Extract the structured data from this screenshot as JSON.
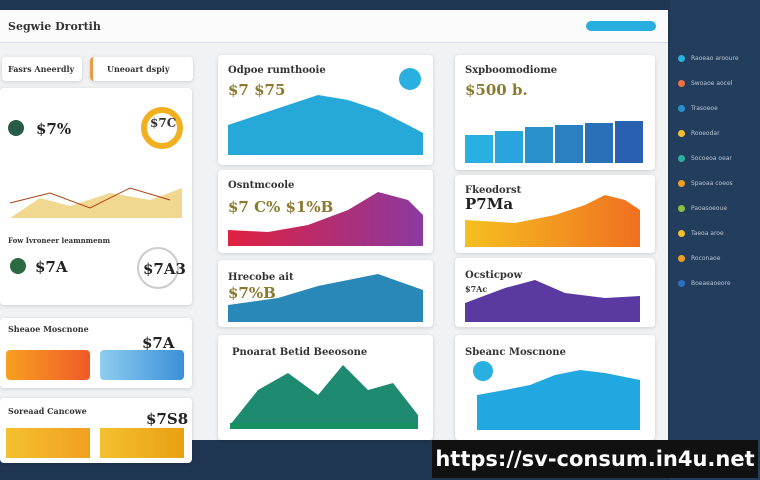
{
  "header": {
    "title": "Segwie Drortih"
  },
  "left_panel": {
    "tabs": [
      "Fasrs Aneerdly",
      "Uneoart dspiy"
    ],
    "stat_a": "$7%",
    "stat_b": "$7C",
    "caption": "Fow Ivroneer leamnmenm",
    "stat_c": "$7A",
    "stat_d": "$7A3"
  },
  "small_cards": [
    {
      "title": "Sheaoe Moscnone",
      "value": "$7A"
    },
    {
      "title": "Soreaad Cancowe",
      "value": "$7S8"
    }
  ],
  "cards": [
    {
      "title": "Odpoe rumthooie",
      "value": "$7 $75"
    },
    {
      "title": "Osntmcoole",
      "value": "$7 C% $1%B"
    },
    {
      "title": "Hrecobe ait",
      "value": "$7%B"
    },
    {
      "title": "Pnoarat Betid Beeosone"
    },
    {
      "title": "Sxpboomodiome",
      "value": "$500 b."
    },
    {
      "title": "Fkeodorst",
      "value": "P7Ma"
    },
    {
      "title": "Ocsticpow",
      "value": "$7Ac"
    },
    {
      "title": "Sbeanc Moscnone"
    }
  ],
  "sidebar": {
    "items": [
      "Raoeao arooure",
      "Swoaoe aocel",
      "Trasoeoe",
      "Rooeodar",
      "Socoeoa oear",
      "Spaoaa coeos",
      "Paoasoeoue",
      "Taeoa aroe",
      "Roconaoe",
      "Boeaeaoeore"
    ]
  },
  "footer": {
    "url": "https://sv-consum.in4u.net"
  }
}
